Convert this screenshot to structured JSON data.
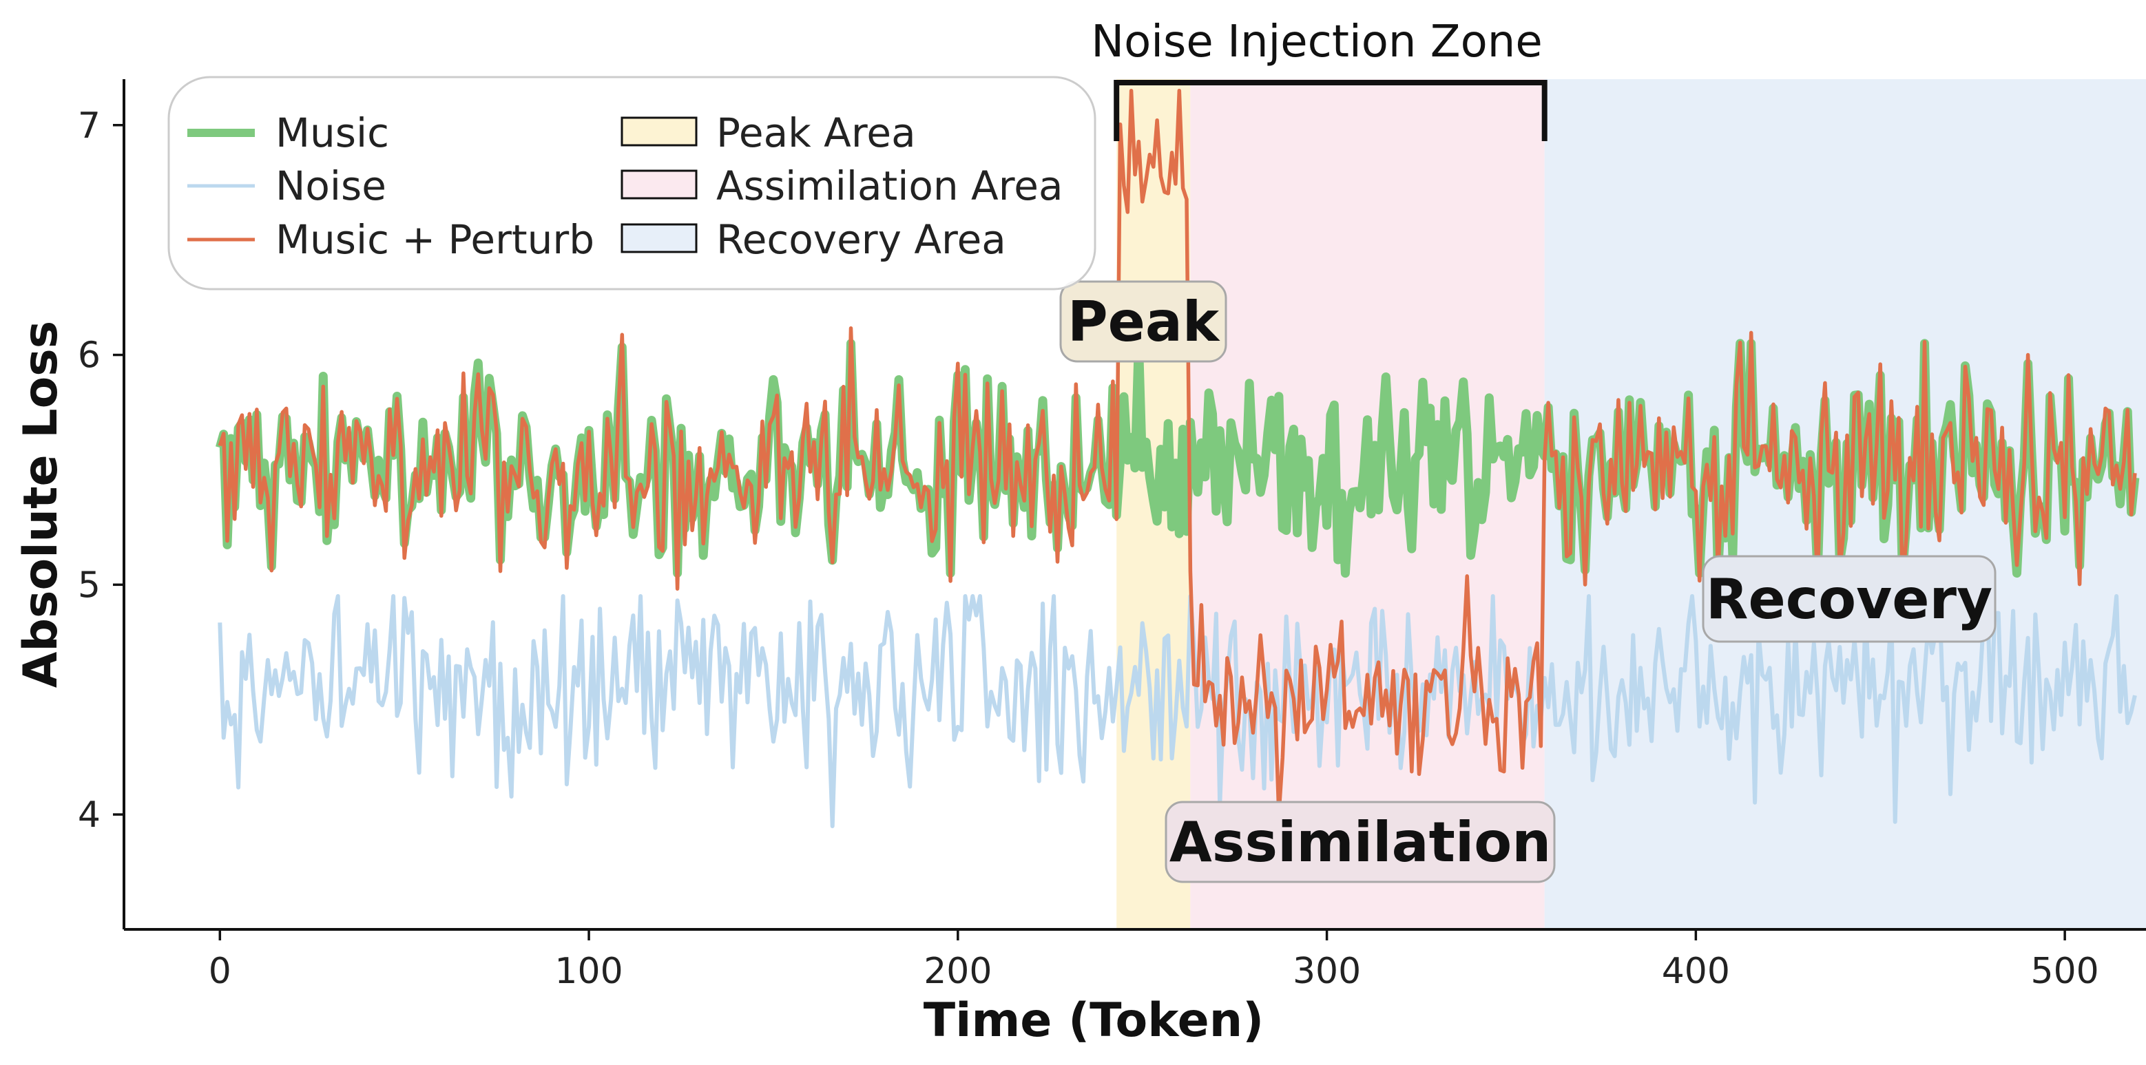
{
  "chart_data": {
    "type": "line",
    "title": "",
    "xlabel": "Time (Token)",
    "ylabel": "Absolute Loss",
    "xlim": [
      -26,
      522
    ],
    "ylim": [
      3.5,
      7.2
    ],
    "xticks": [
      0,
      100,
      200,
      300,
      400,
      500
    ],
    "yticks": [
      4,
      5,
      6,
      7
    ],
    "legend_position": "top-left",
    "legend": [
      {
        "label": "Music",
        "kind": "line",
        "series": "music"
      },
      {
        "label": "Noise",
        "kind": "line",
        "series": "noise"
      },
      {
        "label": "Music + Perturb",
        "kind": "line",
        "series": "perturb"
      },
      {
        "label": "Peak Area",
        "kind": "patch",
        "region": "peak"
      },
      {
        "label": "Assimilation Area",
        "kind": "patch",
        "region": "assimilation"
      },
      {
        "label": "Recovery Area",
        "kind": "patch",
        "region": "recovery"
      }
    ],
    "series": [
      {
        "id": "music",
        "name": "Music",
        "color": "#7ec97e"
      },
      {
        "id": "noise",
        "name": "Noise",
        "color": "#bcd8ee"
      },
      {
        "id": "perturb",
        "name": "Music + Perturb",
        "color": "#e0704a"
      }
    ],
    "generation": {
      "n_points": 520,
      "music_mean": 5.5,
      "music_spread": 0.2,
      "noise_mean": 4.55,
      "noise_spread": 0.2,
      "music_range": [
        5.05,
        6.05
      ],
      "noise_range": [
        3.92,
        4.95
      ],
      "perturb_peak_level": 6.85,
      "perturb_assimilation_mean": 4.5,
      "perturb_range": [
        4.0,
        7.15
      ]
    },
    "regions": [
      {
        "id": "peak",
        "name": "Peak Area",
        "label": "Peak",
        "x0": 243,
        "x1": 263,
        "color": "#fdf3d3",
        "label_box": "#f2ead6"
      },
      {
        "id": "assimilation",
        "name": "Assimilation Area",
        "label": "Assimilation",
        "x0": 263,
        "x1": 359,
        "color": "#fbe9ef",
        "label_box": "#efe2e7"
      },
      {
        "id": "recovery",
        "name": "Recovery Area",
        "label": "Recovery",
        "x0": 359,
        "x1": 522,
        "color": "#e7eff9",
        "label_box": "#e4e8f0"
      }
    ],
    "annotation": {
      "text": "Noise Injection Zone",
      "x0": 243,
      "x1": 359
    }
  }
}
